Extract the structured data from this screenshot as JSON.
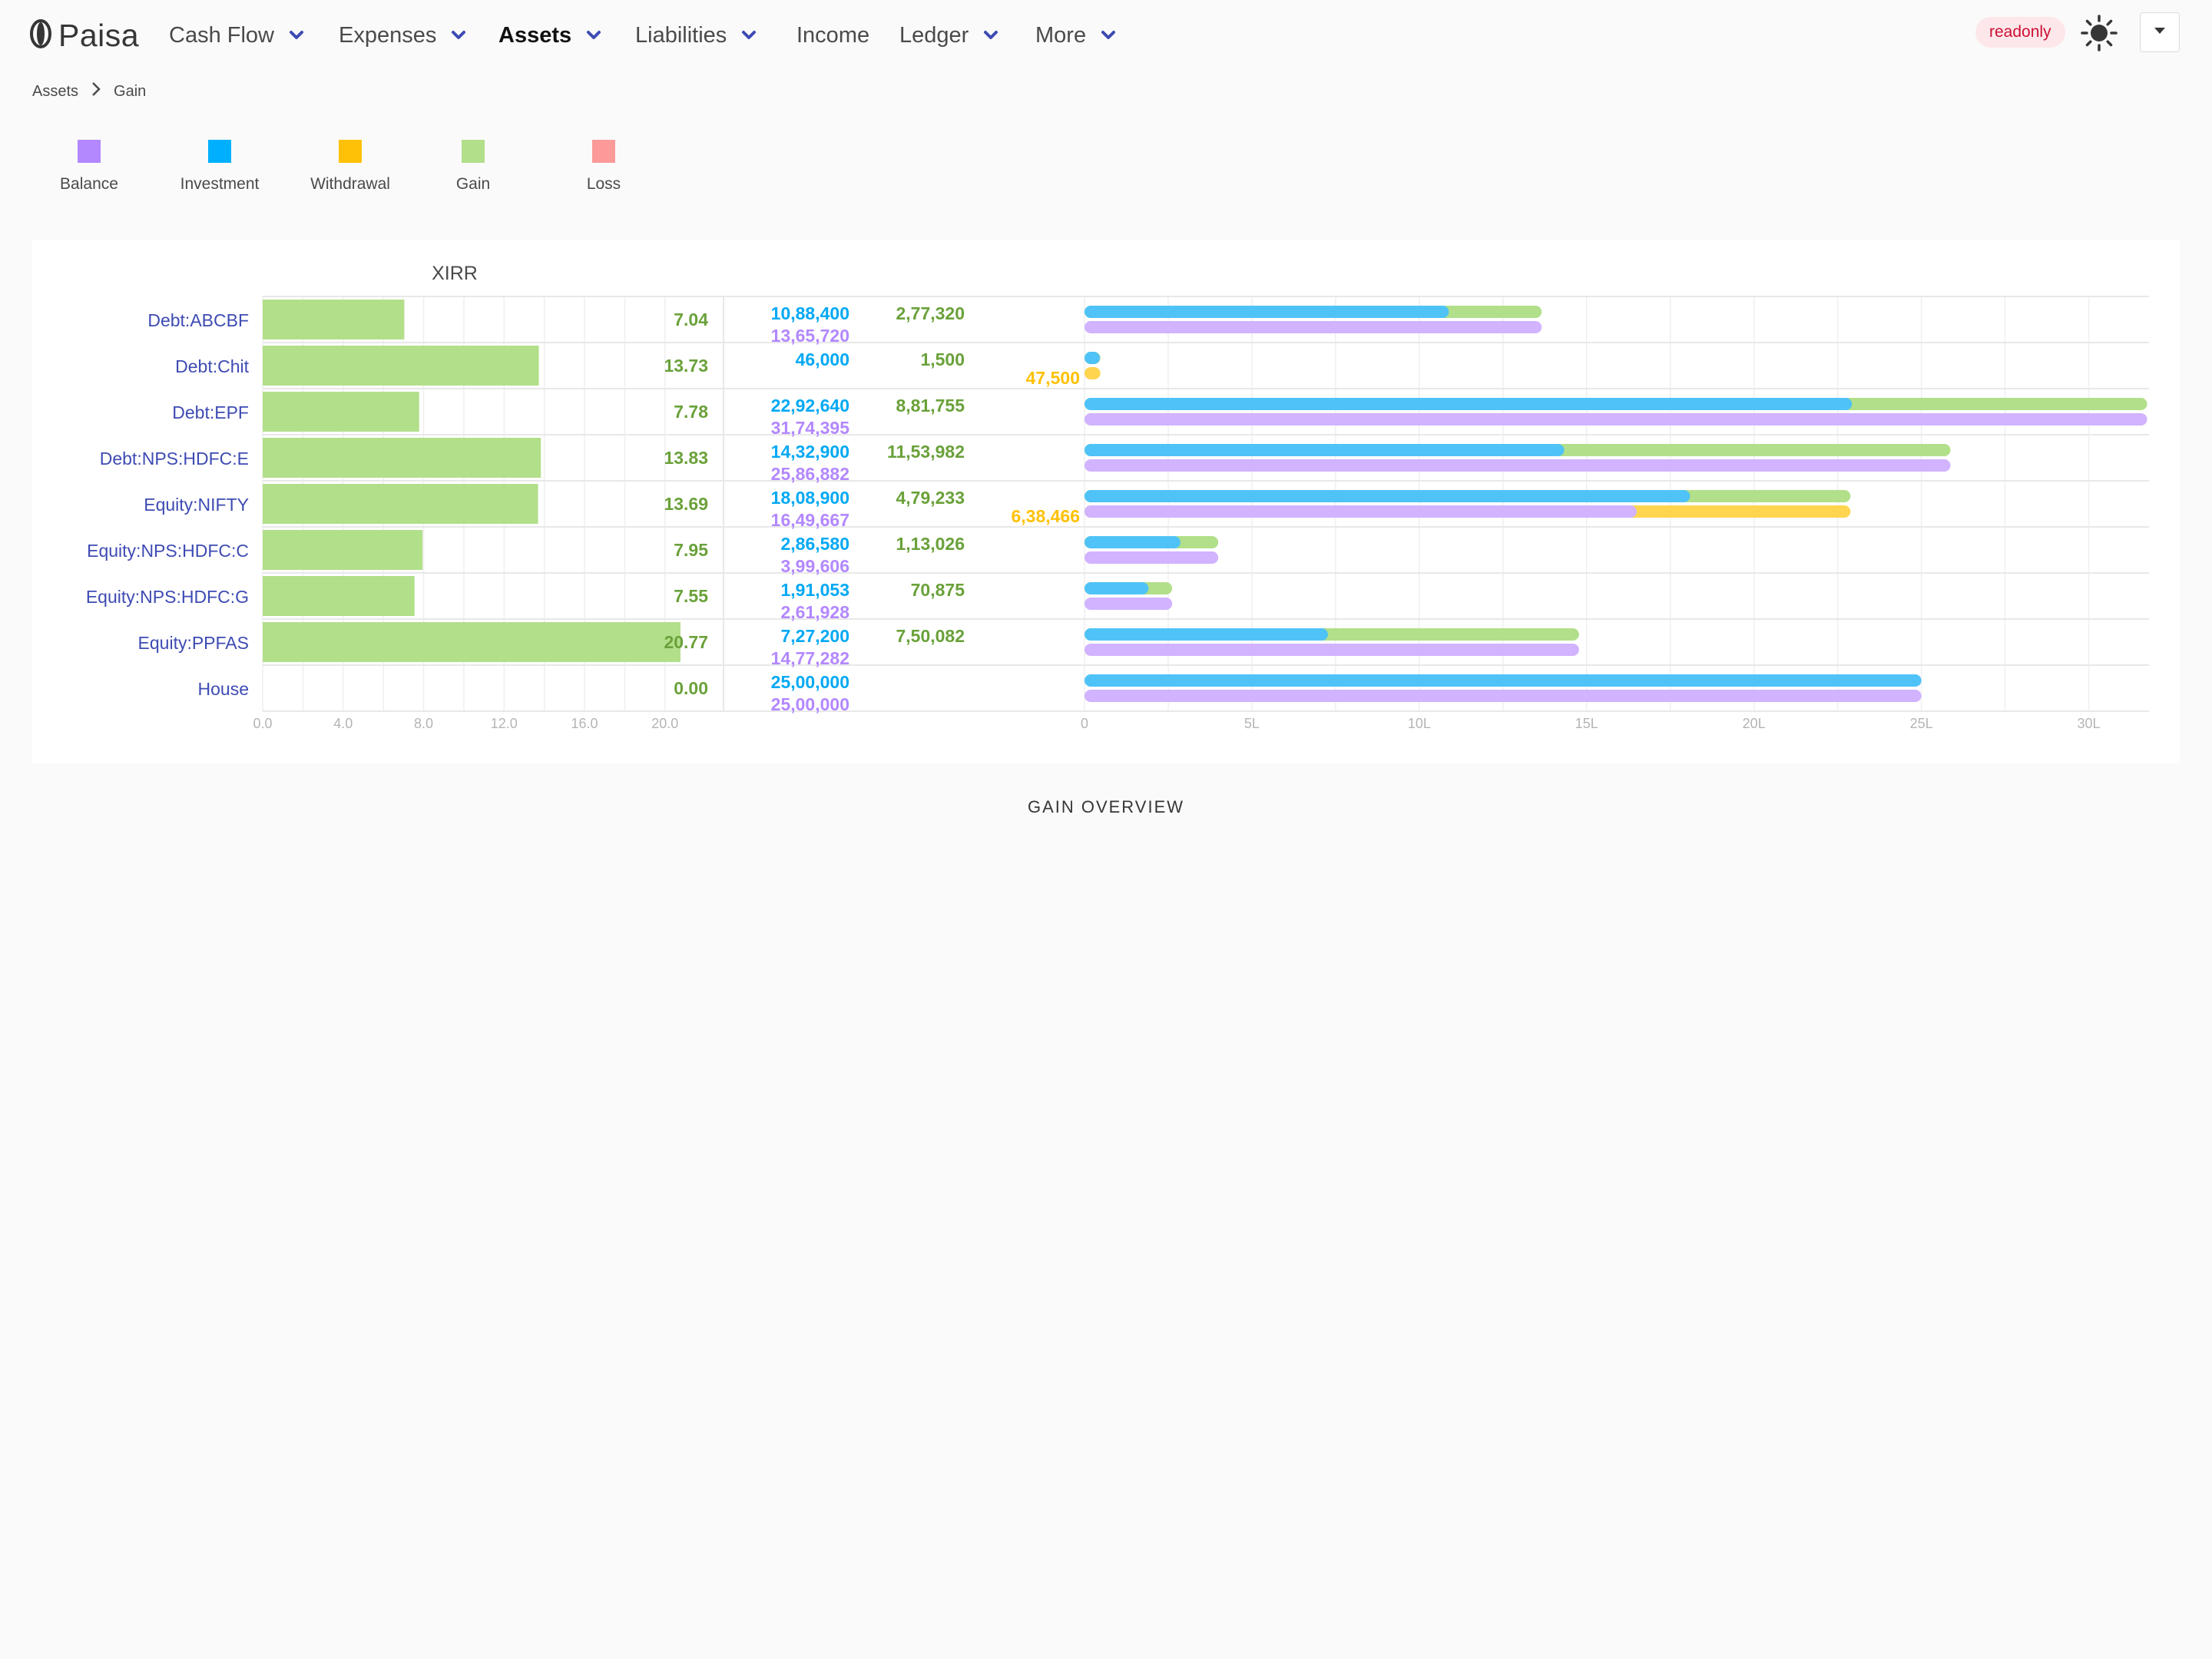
{
  "navbar": {
    "brand": "Paisa",
    "items": [
      {
        "label": "Cash Flow",
        "dropdown": true,
        "active": false
      },
      {
        "label": "Expenses",
        "dropdown": true,
        "active": false
      },
      {
        "label": "Assets",
        "dropdown": true,
        "active": true
      },
      {
        "label": "Liabilities",
        "dropdown": true,
        "active": false
      },
      {
        "label": "Income",
        "dropdown": false,
        "active": false
      },
      {
        "label": "Ledger",
        "dropdown": true,
        "active": false
      },
      {
        "label": "More",
        "dropdown": true,
        "active": false
      }
    ],
    "readonly_tag": "readonly",
    "theme_icon": "sun-icon",
    "user_menu_icon": "caret-down-icon"
  },
  "breadcrumb": {
    "parent": "Assets",
    "current": "Gain"
  },
  "legend": [
    {
      "label": "Balance",
      "color": "#b388ff"
    },
    {
      "label": "Investment",
      "color": "#00b0ff"
    },
    {
      "label": "Withdrawal",
      "color": "#ffc107"
    },
    {
      "label": "Gain",
      "color": "#b2df8a"
    },
    {
      "label": "Loss",
      "color": "#fb9a99"
    }
  ],
  "chart_data": {
    "type": "bar",
    "xirr_title": "XIRR",
    "xirr_axis": {
      "ticks": [
        "0.0",
        "4.0",
        "8.0",
        "12.0",
        "16.0",
        "20.0"
      ],
      "range": [
        0,
        21
      ]
    },
    "amount_axis": {
      "ticks": [
        "0",
        "5L",
        "10L",
        "15L",
        "20L",
        "25L",
        "30L"
      ],
      "range": [
        0,
        3180000
      ]
    },
    "grid": true,
    "colors": {
      "investment": "#4fc3f7",
      "investment_text": "#03a9f4",
      "balance": "#d1b3ff",
      "balance_text": "#b388ff",
      "gain": "#b2df8a",
      "gain_text": "#6aa13a",
      "withdrawal": "#ffd54f",
      "withdrawal_text": "#ffc107",
      "account": "#3e4bb3"
    },
    "rows": [
      {
        "account": "Debt:ABCBF",
        "xirr": 7.04,
        "xirr_label": "7.04",
        "investment": 1088400,
        "investment_label": "10,88,400",
        "balance": 1365720,
        "balance_label": "13,65,720",
        "gain": 277320,
        "gain_label": "2,77,320",
        "withdrawal": 0,
        "withdrawal_label": ""
      },
      {
        "account": "Debt:Chit",
        "xirr": 13.73,
        "xirr_label": "13.73",
        "investment": 46000,
        "investment_label": "46,000",
        "balance": 0,
        "balance_label": "",
        "gain": 1500,
        "gain_label": "1,500",
        "withdrawal": 47500,
        "withdrawal_label": "47,500"
      },
      {
        "account": "Debt:EPF",
        "xirr": 7.78,
        "xirr_label": "7.78",
        "investment": 2292640,
        "investment_label": "22,92,640",
        "balance": 3174395,
        "balance_label": "31,74,395",
        "gain": 881755,
        "gain_label": "8,81,755",
        "withdrawal": 0,
        "withdrawal_label": ""
      },
      {
        "account": "Debt:NPS:HDFC:E",
        "xirr": 13.83,
        "xirr_label": "13.83",
        "investment": 1432900,
        "investment_label": "14,32,900",
        "balance": 2586882,
        "balance_label": "25,86,882",
        "gain": 1153982,
        "gain_label": "11,53,982",
        "withdrawal": 0,
        "withdrawal_label": ""
      },
      {
        "account": "Equity:NIFTY",
        "xirr": 13.69,
        "xirr_label": "13.69",
        "investment": 1808900,
        "investment_label": "18,08,900",
        "balance": 1649667,
        "balance_label": "16,49,667",
        "gain": 479233,
        "gain_label": "4,79,233",
        "withdrawal": 638466,
        "withdrawal_label": "6,38,466"
      },
      {
        "account": "Equity:NPS:HDFC:C",
        "xirr": 7.95,
        "xirr_label": "7.95",
        "investment": 286580,
        "investment_label": "2,86,580",
        "balance": 399606,
        "balance_label": "3,99,606",
        "gain": 113026,
        "gain_label": "1,13,026",
        "withdrawal": 0,
        "withdrawal_label": ""
      },
      {
        "account": "Equity:NPS:HDFC:G",
        "xirr": 7.55,
        "xirr_label": "7.55",
        "investment": 191053,
        "investment_label": "1,91,053",
        "balance": 261928,
        "balance_label": "2,61,928",
        "gain": 70875,
        "gain_label": "70,875",
        "withdrawal": 0,
        "withdrawal_label": ""
      },
      {
        "account": "Equity:PPFAS",
        "xirr": 20.77,
        "xirr_label": "20.77",
        "investment": 727200,
        "investment_label": "7,27,200",
        "balance": 1477282,
        "balance_label": "14,77,282",
        "gain": 750082,
        "gain_label": "7,50,082",
        "withdrawal": 0,
        "withdrawal_label": ""
      },
      {
        "account": "House",
        "xirr": 0.0,
        "xirr_label": "0.00",
        "investment": 2500000,
        "investment_label": "25,00,000",
        "balance": 2500000,
        "balance_label": "25,00,000",
        "gain": 0,
        "gain_label": "",
        "withdrawal": 0,
        "withdrawal_label": ""
      }
    ]
  },
  "overview_title": "GAIN OVERVIEW"
}
